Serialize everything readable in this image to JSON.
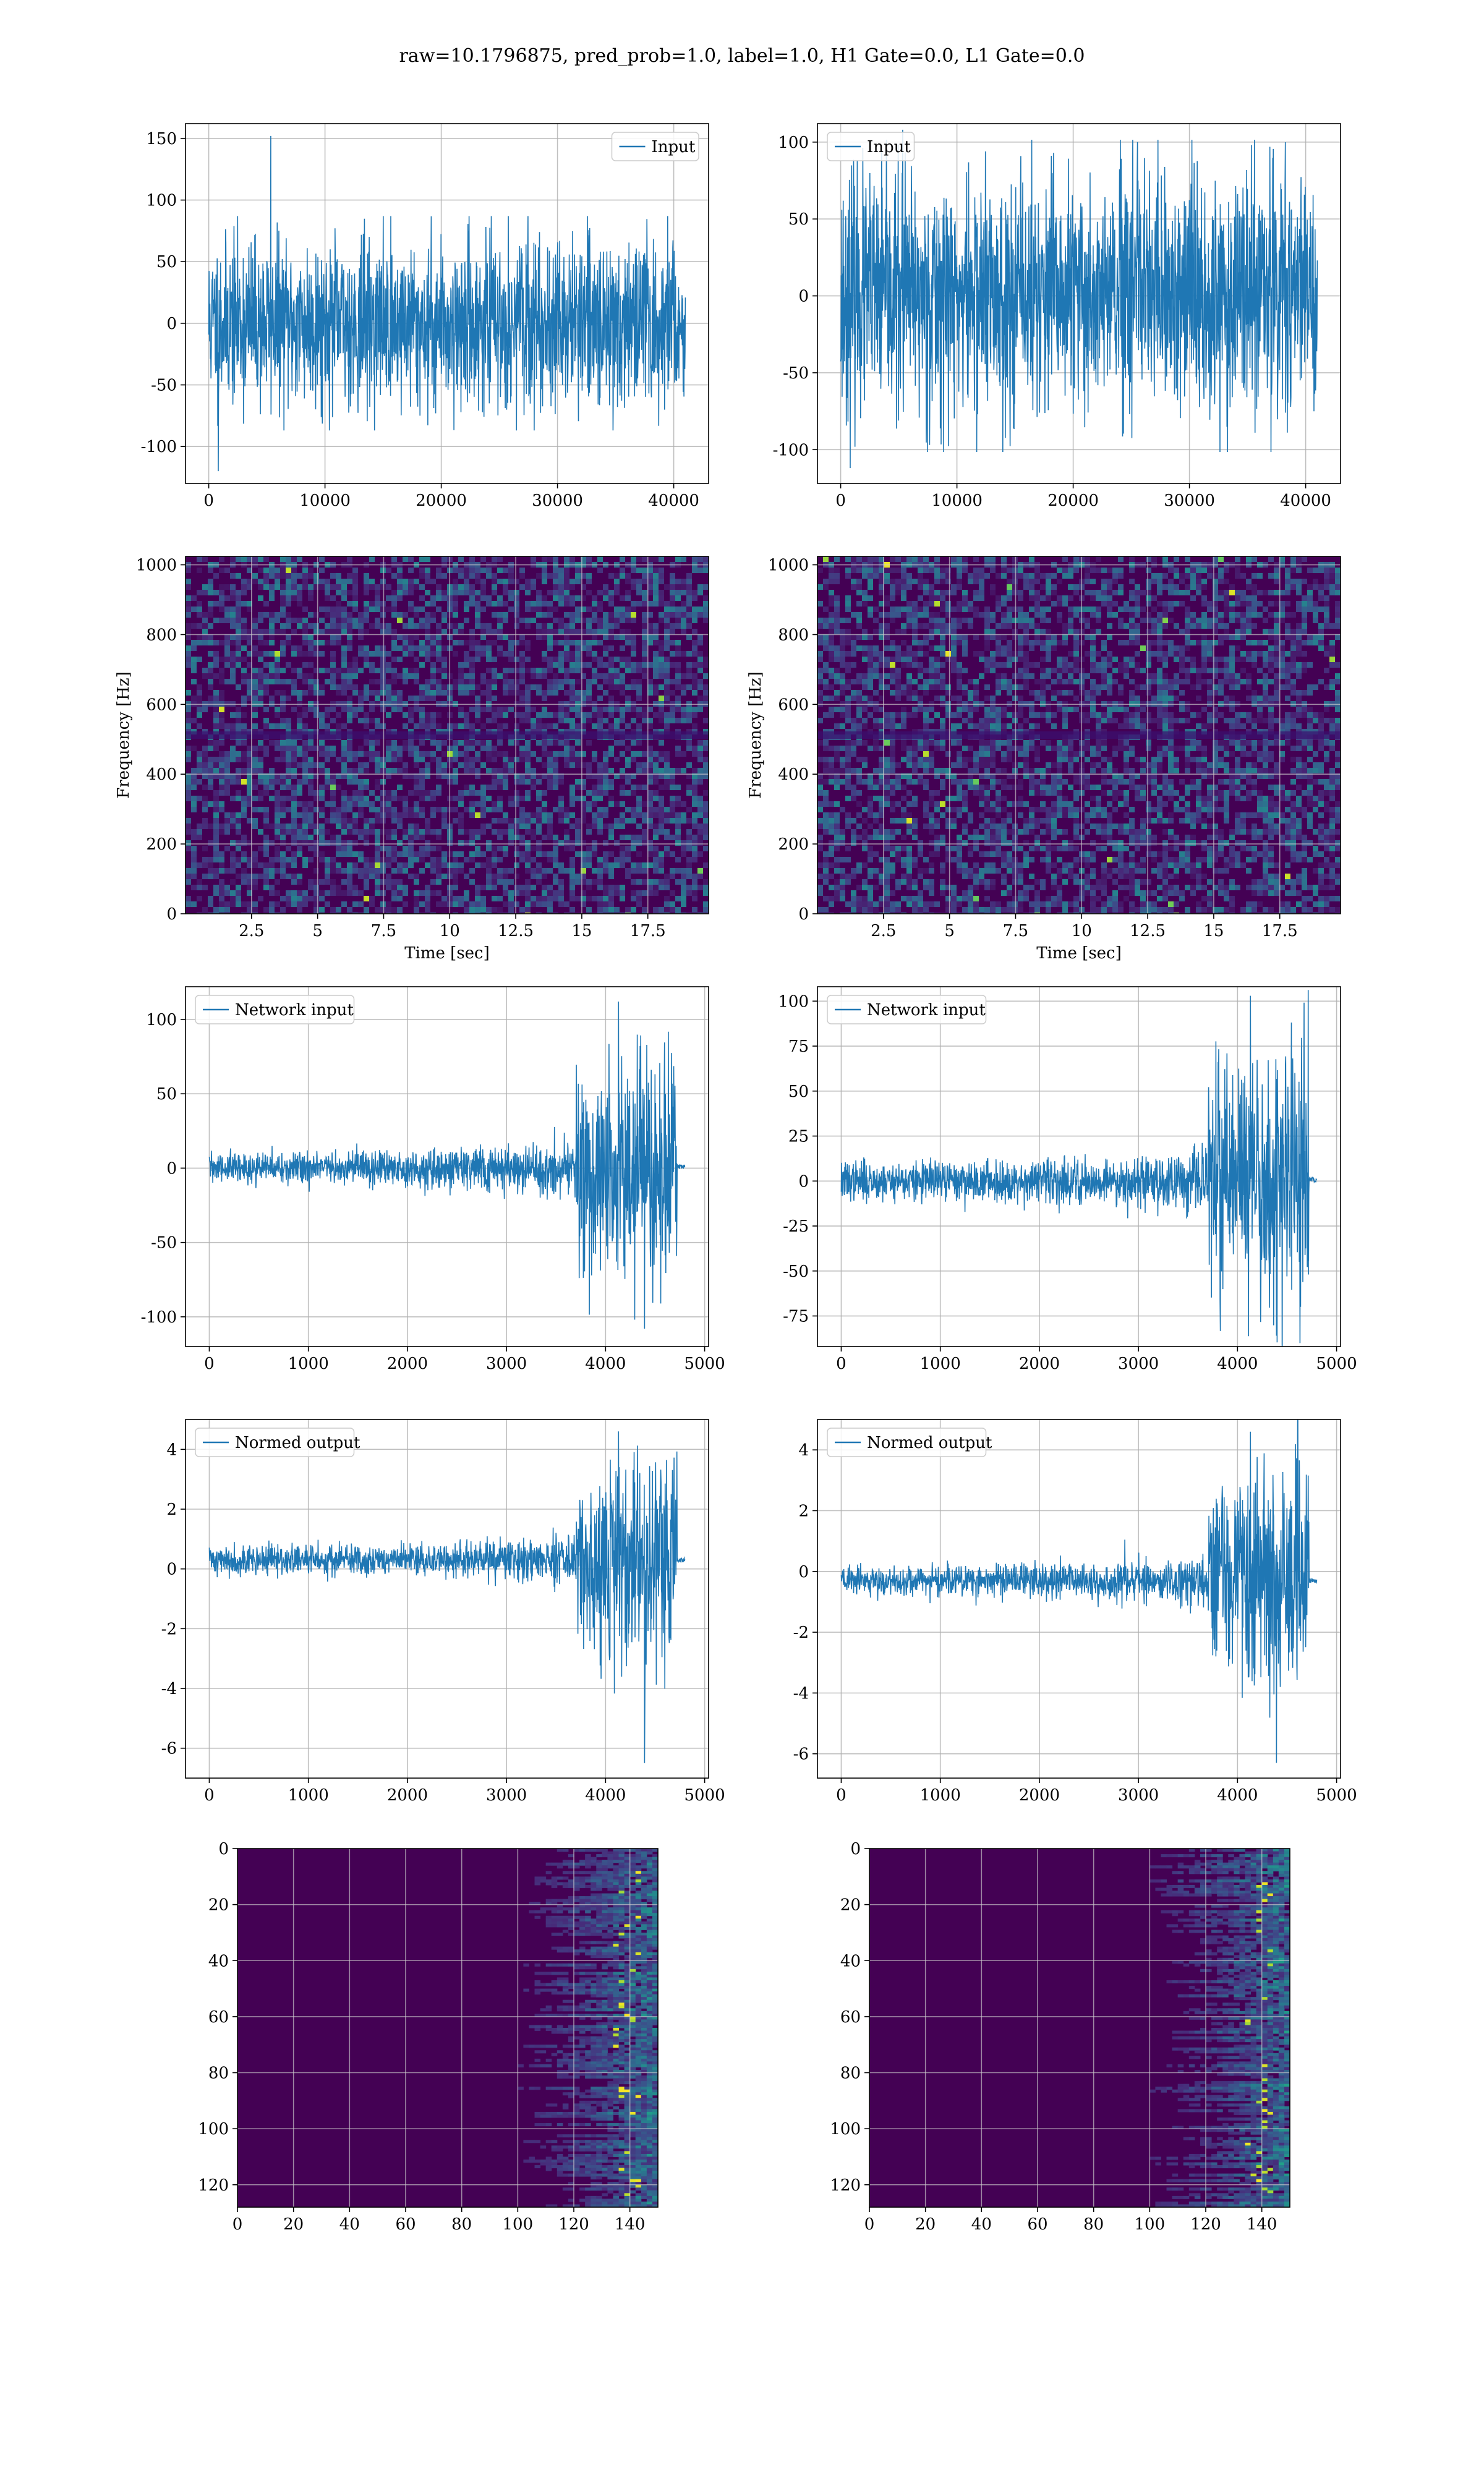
{
  "figure": {
    "title": "raw=10.1796875, pred_prob=1.0, label=1.0, H1 Gate=0.0, L1 Gate=0.0",
    "colors": {
      "line": "#1f77b4",
      "grid": "#b0b0b0",
      "axes": "#000000",
      "viridis_bg": "#440154"
    }
  },
  "chart_data": [
    {
      "panel": "row1-left",
      "type": "line",
      "title": "",
      "xlabel": "",
      "ylabel": "",
      "legend": [
        "Input"
      ],
      "legend_loc": "upper right",
      "grid": true,
      "xlim": [
        -2000,
        43000
      ],
      "ylim": [
        -130,
        162
      ],
      "xticks": [
        0,
        10000,
        20000,
        30000,
        40000
      ],
      "yticks": [
        -100,
        -50,
        0,
        50,
        100,
        150
      ],
      "series": [
        {
          "name": "Input",
          "style": "noise",
          "x_range": [
            0,
            41000
          ],
          "amp": 60,
          "peak_max": 152,
          "peak_min": -120,
          "seed": 11
        }
      ]
    },
    {
      "panel": "row1-right",
      "type": "line",
      "title": "",
      "xlabel": "",
      "ylabel": "",
      "legend": [
        "Input"
      ],
      "legend_loc": "upper left",
      "grid": true,
      "xlim": [
        -2000,
        43000
      ],
      "ylim": [
        -122,
        112
      ],
      "xticks": [
        0,
        10000,
        20000,
        30000,
        40000
      ],
      "yticks": [
        -100,
        -50,
        0,
        50,
        100
      ],
      "series": [
        {
          "name": "Input",
          "style": "noise",
          "x_range": [
            0,
            41000
          ],
          "amp": 70,
          "peak_max": 108,
          "peak_min": -112,
          "seed": 23
        }
      ]
    },
    {
      "panel": "row2-left",
      "type": "heatmap",
      "style": "spectrogram",
      "xlabel": "Time [sec]",
      "ylabel": "Frequency [Hz]",
      "grid": true,
      "xlim": [
        0,
        19.8
      ],
      "ylim": [
        0,
        1024
      ],
      "xticks": [
        2.5,
        5.0,
        7.5,
        10.0,
        12.5,
        15.0,
        17.5
      ],
      "yticks": [
        0,
        200,
        400,
        600,
        800,
        1000
      ],
      "seed": 5
    },
    {
      "panel": "row2-right",
      "type": "heatmap",
      "style": "spectrogram",
      "xlabel": "Time [sec]",
      "ylabel": "Frequency [Hz]",
      "grid": true,
      "xlim": [
        0,
        19.8
      ],
      "ylim": [
        0,
        1024
      ],
      "xticks": [
        2.5,
        5.0,
        7.5,
        10.0,
        12.5,
        15.0,
        17.5
      ],
      "yticks": [
        0,
        200,
        400,
        600,
        800,
        1000
      ],
      "seed": 9
    },
    {
      "panel": "row3-left",
      "type": "line",
      "xlabel": "",
      "ylabel": "",
      "legend": [
        "Network input"
      ],
      "legend_loc": "upper left",
      "grid": true,
      "xlim": [
        -240,
        5040
      ],
      "ylim": [
        -120,
        122
      ],
      "xticks": [
        0,
        1000,
        2000,
        3000,
        4000,
        5000
      ],
      "yticks": [
        -100,
        -50,
        0,
        50,
        100
      ],
      "series": [
        {
          "name": "Network input",
          "style": "chirp",
          "x_range": [
            0,
            4800
          ],
          "end": 4720,
          "base": 0,
          "a0": 12,
          "a1": 30,
          "burst_start": 3700,
          "burst_amp": 60,
          "peak_max": 112,
          "peak_min": -108,
          "tail": 1,
          "seed": 31
        }
      ]
    },
    {
      "panel": "row3-right",
      "type": "line",
      "xlabel": "",
      "ylabel": "",
      "legend": [
        "Network input"
      ],
      "legend_loc": "upper left",
      "grid": true,
      "xlim": [
        -240,
        5040
      ],
      "ylim": [
        -92,
        108
      ],
      "xticks": [
        0,
        1000,
        2000,
        3000,
        4000,
        5000
      ],
      "yticks": [
        -75,
        -50,
        -25,
        0,
        25,
        50,
        75,
        100
      ],
      "series": [
        {
          "name": "Network input",
          "style": "chirp",
          "x_range": [
            0,
            4800
          ],
          "end": 4720,
          "base": 0,
          "a0": 12,
          "a1": 28,
          "burst_start": 3700,
          "burst_amp": 55,
          "peak_max": 103,
          "peak_min": -86,
          "tail": 1,
          "seed": 37
        }
      ]
    },
    {
      "panel": "row4-left",
      "type": "line",
      "xlabel": "",
      "ylabel": "",
      "legend": [
        "Normed output"
      ],
      "legend_loc": "upper left",
      "grid": true,
      "xlim": [
        -240,
        5040
      ],
      "ylim": [
        -7.0,
        5.0
      ],
      "xticks": [
        0,
        1000,
        2000,
        3000,
        4000,
        5000
      ],
      "yticks": [
        -6,
        -4,
        -2,
        0,
        2,
        4
      ],
      "series": [
        {
          "name": "Normed output",
          "style": "chirp",
          "x_range": [
            0,
            4800
          ],
          "end": 4720,
          "base": 0.3,
          "a0": 0.55,
          "a1": 1.3,
          "burst_start": 3700,
          "burst_amp": 2.8,
          "peak_max": 4.6,
          "peak_min": -6.5,
          "tail": 0.3,
          "seed": 41
        }
      ]
    },
    {
      "panel": "row4-right",
      "type": "line",
      "xlabel": "",
      "ylabel": "",
      "legend": [
        "Normed output"
      ],
      "legend_loc": "upper left",
      "grid": true,
      "xlim": [
        -240,
        5040
      ],
      "ylim": [
        -6.8,
        5.0
      ],
      "xticks": [
        0,
        1000,
        2000,
        3000,
        4000,
        5000
      ],
      "yticks": [
        -6,
        -4,
        -2,
        0,
        2,
        4
      ],
      "series": [
        {
          "name": "Normed output",
          "style": "chirp",
          "x_range": [
            0,
            4800
          ],
          "end": 4720,
          "base": -0.3,
          "a0": 0.55,
          "a1": 1.3,
          "burst_start": 3700,
          "burst_amp": 2.8,
          "peak_max": 4.6,
          "peak_min": -6.3,
          "tail": -0.3,
          "seed": 43
        }
      ]
    },
    {
      "panel": "row5-left",
      "type": "heatmap",
      "style": "feature-map",
      "xlabel": "",
      "ylabel": "",
      "grid": true,
      "inverted_y": true,
      "xlim": [
        0,
        150
      ],
      "ylim": [
        128,
        0
      ],
      "xticks": [
        0,
        20,
        40,
        60,
        80,
        100,
        120,
        140
      ],
      "yticks": [
        0,
        20,
        40,
        60,
        80,
        100,
        120
      ],
      "seed": 53
    },
    {
      "panel": "row5-right",
      "type": "heatmap",
      "style": "feature-map",
      "xlabel": "",
      "ylabel": "",
      "grid": true,
      "inverted_y": true,
      "xlim": [
        0,
        150
      ],
      "ylim": [
        128,
        0
      ],
      "xticks": [
        0,
        20,
        40,
        60,
        80,
        100,
        120,
        140
      ],
      "yticks": [
        0,
        20,
        40,
        60,
        80,
        100,
        120
      ],
      "seed": 59
    }
  ]
}
